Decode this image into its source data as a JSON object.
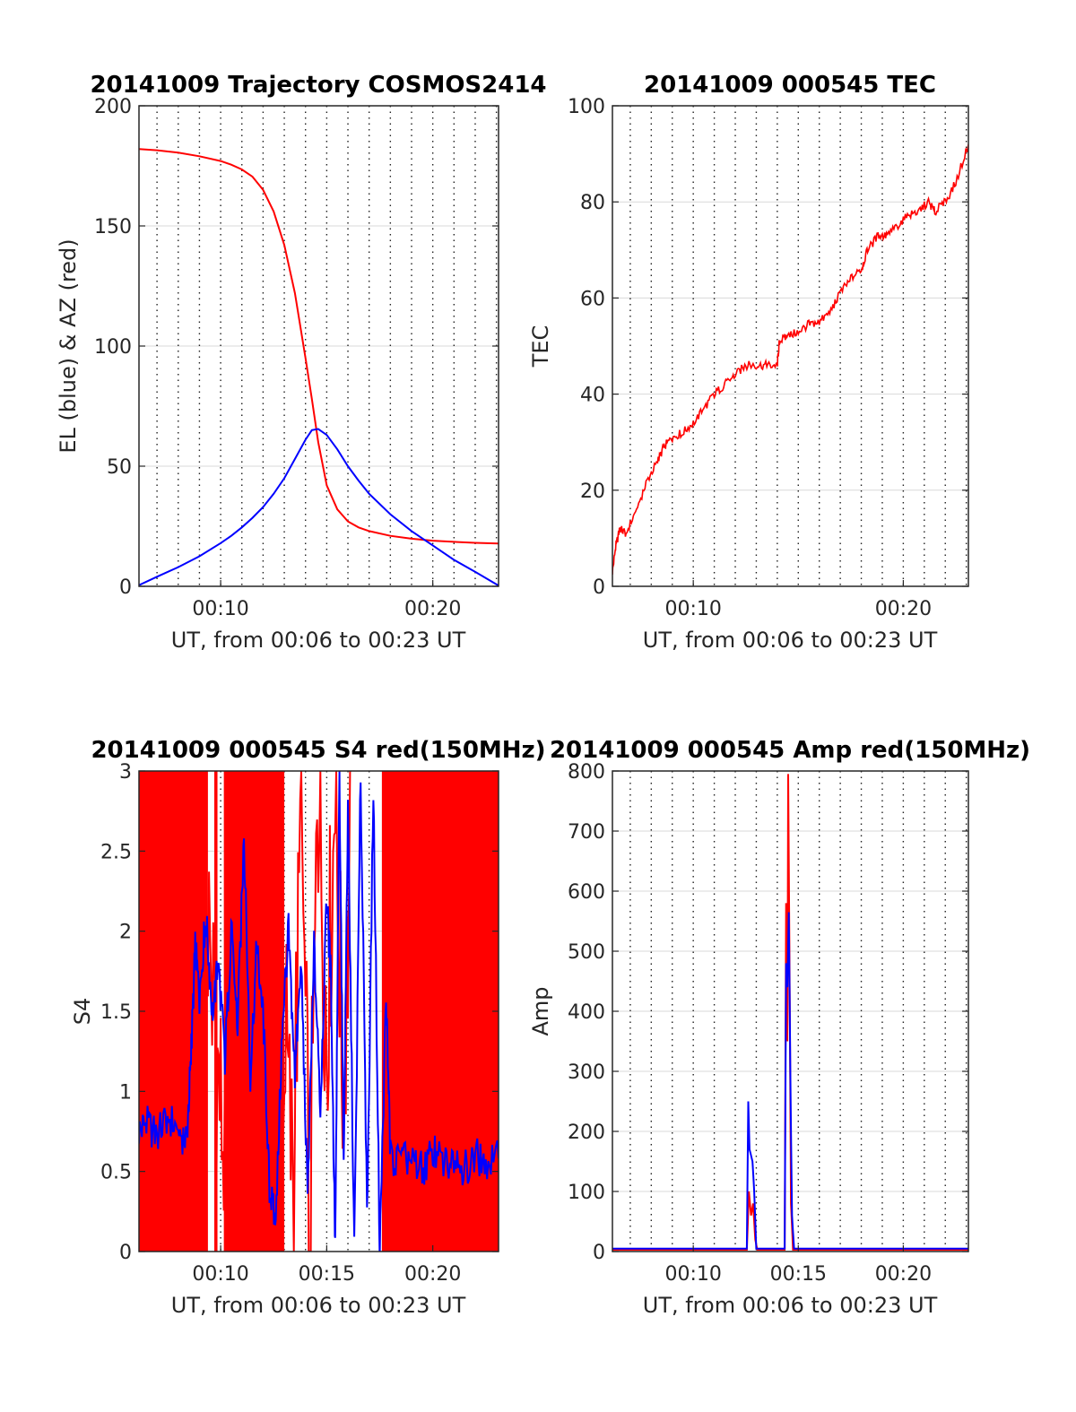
{
  "colors": {
    "red": "#ff0000",
    "blue": "#0000ff",
    "axis": "#262626",
    "grid": "#d9d9d9"
  },
  "chart_data": [
    {
      "id": "traj",
      "type": "line",
      "title": "20141009 Trajectory COSMOS2414",
      "xlabel": "UT, from 00:06 to 00:23 UT",
      "ylabel": "EL (blue) & AZ (red)",
      "xlim": [
        6.15,
        23.1
      ],
      "ylim": [
        0,
        200
      ],
      "xticks": [
        {
          "v": 10,
          "label": "00:10"
        },
        {
          "v": 20,
          "label": "00:20"
        }
      ],
      "yticks": [
        {
          "v": 0,
          "label": "0"
        },
        {
          "v": 50,
          "label": "50"
        },
        {
          "v": 100,
          "label": "100"
        },
        {
          "v": 150,
          "label": "150"
        },
        {
          "v": 200,
          "label": "200"
        }
      ],
      "grid": "on",
      "series": [
        {
          "color": "red",
          "x": [
            6.15,
            7,
            8,
            9,
            10,
            10.5,
            11,
            11.5,
            12,
            12.5,
            13,
            13.5,
            14,
            14.3,
            14.6,
            15,
            15.5,
            16,
            16.5,
            17,
            18,
            19,
            20,
            21,
            22,
            23.1
          ],
          "values": [
            182,
            181.5,
            180.5,
            179,
            177,
            175.5,
            173.5,
            170.5,
            165,
            156,
            142,
            122,
            95,
            78,
            60,
            42,
            32,
            27,
            24.5,
            23,
            21,
            19.8,
            19,
            18.5,
            18.1,
            17.8
          ]
        },
        {
          "color": "blue",
          "x": [
            6.15,
            7,
            8,
            9,
            10,
            10.5,
            11,
            11.5,
            12,
            12.5,
            13,
            13.5,
            14,
            14.3,
            14.6,
            15,
            15.5,
            16,
            16.5,
            17,
            18,
            19,
            20,
            21,
            22,
            23.1
          ],
          "values": [
            0.5,
            4,
            8,
            12.5,
            18,
            21,
            24.5,
            28.5,
            33,
            38.5,
            45,
            53,
            61,
            65,
            65.5,
            63,
            57,
            50,
            44,
            38.5,
            30,
            23,
            17,
            11,
            6,
            0.3
          ]
        }
      ]
    },
    {
      "id": "tec",
      "type": "line",
      "title": "20141009 000545 TEC",
      "xlabel": "UT, from 00:06 to 00:23 UT",
      "ylabel": "TEC",
      "xlim": [
        6.15,
        23.1
      ],
      "ylim": [
        0,
        100
      ],
      "xticks": [
        {
          "v": 10,
          "label": "00:10"
        },
        {
          "v": 20,
          "label": "00:20"
        }
      ],
      "yticks": [
        {
          "v": 0,
          "label": "0"
        },
        {
          "v": 20,
          "label": "20"
        },
        {
          "v": 40,
          "label": "40"
        },
        {
          "v": 60,
          "label": "60"
        },
        {
          "v": 80,
          "label": "80"
        },
        {
          "v": 100,
          "label": "100"
        }
      ],
      "grid": "on",
      "series": [
        {
          "color": "red",
          "x": [
            6.15,
            6.3,
            6.5,
            6.8,
            7.3,
            7.8,
            8.3,
            8.6,
            9.0,
            9.5,
            10.0,
            10.5,
            11.0,
            11.5,
            12.0,
            12.5,
            13.0,
            13.5,
            14.0,
            14.1,
            14.5,
            15.0,
            15.5,
            16.0,
            16.5,
            17.0,
            17.5,
            18.0,
            18.3,
            18.8,
            19.2,
            19.7,
            20.2,
            20.7,
            21.2,
            21.5,
            22.0,
            22.5,
            23.1
          ],
          "values": [
            3,
            8,
            12,
            11,
            16,
            22,
            26,
            29,
            31,
            32,
            34,
            37,
            40,
            42,
            44,
            46,
            46,
            46,
            46,
            51,
            52,
            53,
            54.5,
            55,
            57,
            61,
            64,
            66,
            70,
            73,
            73,
            75,
            77,
            78,
            80,
            78,
            80,
            84,
            92
          ]
        }
      ]
    },
    {
      "id": "s4",
      "type": "line",
      "title": "20141009 000545 S4 red(150MHz)",
      "xlabel": "UT, from 00:06 to 00:23 UT",
      "ylabel": "S4",
      "xlim": [
        6.15,
        23.1
      ],
      "ylim": [
        0,
        3
      ],
      "xticks": [
        {
          "v": 10,
          "label": "00:10"
        },
        {
          "v": 15,
          "label": "00:15"
        },
        {
          "v": 20,
          "label": "00:20"
        }
      ],
      "yticks": [
        {
          "v": 0,
          "label": "0"
        },
        {
          "v": 0.5,
          "label": "0.5"
        },
        {
          "v": 1,
          "label": "1"
        },
        {
          "v": 1.5,
          "label": "1.5"
        },
        {
          "v": 2,
          "label": "2"
        },
        {
          "v": 2.5,
          "label": "2.5"
        },
        {
          "v": 3,
          "label": "3"
        }
      ],
      "grid": "on",
      "red_filled_ranges": [
        [
          6.15,
          9.4
        ],
        [
          9.7,
          9.85
        ],
        [
          10.15,
          13.0
        ],
        [
          17.6,
          23.1
        ]
      ],
      "red_trace": {
        "x": [
          9.4,
          9.8,
          10.2,
          10.6,
          11.0,
          11.4,
          11.8,
          12.2,
          12.6,
          13.0,
          13.4,
          13.8,
          14.2,
          14.6,
          15.0,
          15.4,
          15.8,
          16.2
        ],
        "values": [
          2.1,
          1.2,
          0.6,
          1.8,
          1.1,
          2.4,
          0.7,
          1.9,
          0.2,
          1.5,
          0.4,
          2.7,
          0.1,
          2.9,
          1.4,
          2.8,
          0.9,
          3.0
        ]
      },
      "series": [
        {
          "color": "blue",
          "x": [
            6.15,
            6.5,
            7.0,
            7.5,
            8.0,
            8.4,
            8.6,
            8.8,
            9.0,
            9.3,
            9.6,
            9.9,
            10.2,
            10.5,
            10.8,
            11.1,
            11.4,
            11.7,
            12.0,
            12.3,
            12.6,
            12.9,
            13.2,
            13.5,
            13.8,
            14.1,
            14.4,
            14.7,
            15.0,
            15.2,
            15.4,
            15.6,
            15.8,
            16.0,
            16.3,
            16.6,
            16.9,
            17.2,
            17.5,
            17.8,
            18.0,
            18.5,
            19.0,
            19.5,
            20.0,
            20.5,
            21.0,
            21.5,
            22.0,
            22.5,
            23.1
          ],
          "values": [
            0.75,
            0.8,
            0.72,
            0.85,
            0.75,
            0.7,
            1.2,
            1.9,
            1.6,
            2.1,
            1.5,
            1.8,
            1.2,
            2.0,
            1.4,
            2.6,
            1.1,
            1.9,
            1.5,
            0.4,
            0.15,
            1.4,
            2.0,
            1.1,
            1.8,
            0.3,
            1.9,
            0.9,
            2.2,
            1.7,
            0.0,
            3.0,
            0.5,
            2.8,
            0.0,
            3.0,
            0.2,
            2.9,
            0.0,
            1.6,
            0.6,
            0.55,
            0.6,
            0.5,
            0.62,
            0.55,
            0.58,
            0.52,
            0.6,
            0.55,
            0.58
          ]
        }
      ]
    },
    {
      "id": "amp",
      "type": "line",
      "title": "20141009 000545 Amp red(150MHz)",
      "xlabel": "UT, from 00:06 to 00:23 UT",
      "ylabel": "Amp",
      "xlim": [
        6.15,
        23.1
      ],
      "ylim": [
        0,
        800
      ],
      "xticks": [
        {
          "v": 10,
          "label": "00:10"
        },
        {
          "v": 15,
          "label": "00:15"
        },
        {
          "v": 20,
          "label": "00:20"
        }
      ],
      "yticks": [
        {
          "v": 0,
          "label": "0"
        },
        {
          "v": 100,
          "label": "100"
        },
        {
          "v": 200,
          "label": "200"
        },
        {
          "v": 300,
          "label": "300"
        },
        {
          "v": 400,
          "label": "400"
        },
        {
          "v": 500,
          "label": "500"
        },
        {
          "v": 600,
          "label": "600"
        },
        {
          "v": 700,
          "label": "700"
        },
        {
          "v": 800,
          "label": "800"
        }
      ],
      "grid": "on",
      "series": [
        {
          "color": "red",
          "x": [
            6.15,
            12.55,
            12.65,
            12.75,
            12.85,
            12.95,
            13.05,
            14.35,
            14.42,
            14.48,
            14.52,
            14.58,
            14.65,
            14.75,
            23.1
          ],
          "values": [
            3,
            3,
            100,
            60,
            80,
            20,
            3,
            3,
            580,
            350,
            795,
            500,
            80,
            3,
            3
          ]
        },
        {
          "color": "blue",
          "x": [
            6.15,
            12.55,
            12.62,
            12.68,
            12.75,
            12.82,
            12.9,
            13.0,
            14.35,
            14.42,
            14.48,
            14.55,
            14.62,
            14.7,
            14.8,
            23.1
          ],
          "values": [
            5,
            5,
            250,
            170,
            160,
            150,
            100,
            5,
            5,
            480,
            440,
            565,
            300,
            60,
            5,
            5
          ]
        }
      ]
    }
  ]
}
